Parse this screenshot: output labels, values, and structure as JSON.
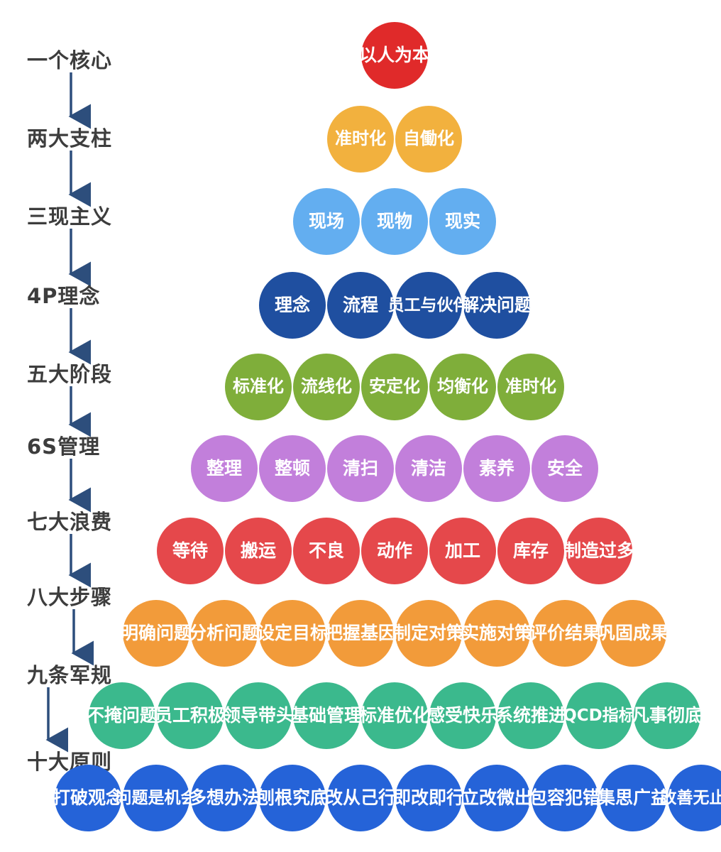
{
  "levels": [
    {
      "label": "一个核心",
      "color": "#e02a2a",
      "items": [
        "以人\n为本"
      ]
    },
    {
      "label": "两大支柱",
      "color": "#f2b13e",
      "items": [
        "准时化",
        "自働化"
      ]
    },
    {
      "label": "三现主义",
      "color": "#63aef0",
      "items": [
        "现场",
        "现物",
        "现实"
      ]
    },
    {
      "label": "4P理念",
      "color": "#1f4fa0",
      "items": [
        "理念",
        "流程",
        "员工与\n伙伴",
        "解决\n问题"
      ]
    },
    {
      "label": "五大阶段",
      "color": "#7fae3a",
      "items": [
        "标准化",
        "流线化",
        "安定化",
        "均衡化",
        "准时化"
      ]
    },
    {
      "label": "6S管理",
      "color": "#c27fdb",
      "items": [
        "整理",
        "整顿",
        "清扫",
        "清洁",
        "素养",
        "安全"
      ]
    },
    {
      "label": "七大浪费",
      "color": "#e5484b",
      "items": [
        "等待",
        "搬运",
        "不良",
        "动作",
        "加工",
        "库存",
        "制造\n过多"
      ]
    },
    {
      "label": "八大步骤",
      "color": "#f29b3a",
      "items": [
        "明确\n问题",
        "分析\n问题",
        "设定\n目标",
        "把握\n基因",
        "制定\n对策",
        "实施\n对策",
        "评价\n结果",
        "巩固\n成果"
      ]
    },
    {
      "label": "九条军规",
      "color": "#3bb98d",
      "items": [
        "不掩\n问题",
        "员工\n积极",
        "领导\n带头",
        "基础\n管理",
        "标准\n优化",
        "感受\n快乐",
        "系统\n推进",
        "QCD\n指标",
        "凡事\n彻底"
      ]
    },
    {
      "label": "十大原则",
      "color": "#2563d8",
      "items": [
        "打破\n观念",
        "问题是\n机会",
        "多想\n办法",
        "刨根\n究底",
        "改从\n己行",
        "即改\n即行",
        "立改\n微出",
        "包容\n犯错",
        "集思\n广益",
        "改善无\n止境"
      ]
    }
  ]
}
